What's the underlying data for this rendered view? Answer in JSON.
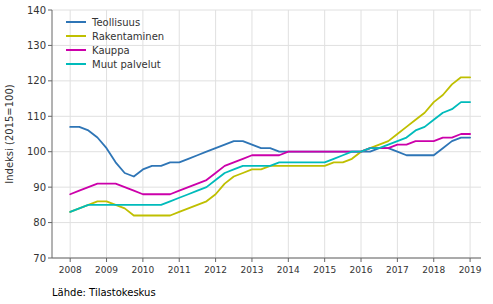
{
  "chart_data": {
    "type": "line",
    "ylabel": "Indeksi (2015=100)",
    "source": "Lähde: Tilastokeskus",
    "xlim": [
      2007.5,
      2019.3
    ],
    "ylim": [
      70,
      140
    ],
    "xticks": [
      2008,
      2009,
      2010,
      2011,
      2012,
      2013,
      2014,
      2015,
      2016,
      2017,
      2018,
      2019
    ],
    "yticks": [
      70,
      80,
      90,
      100,
      110,
      120,
      130,
      140
    ],
    "grid": true,
    "legend": "upper left",
    "x": [
      2008.0,
      2008.25,
      2008.5,
      2008.75,
      2009.0,
      2009.25,
      2009.5,
      2009.75,
      2010.0,
      2010.25,
      2010.5,
      2010.75,
      2011.0,
      2011.25,
      2011.5,
      2011.75,
      2012.0,
      2012.25,
      2012.5,
      2012.75,
      2013.0,
      2013.25,
      2013.5,
      2013.75,
      2014.0,
      2014.25,
      2014.5,
      2014.75,
      2015.0,
      2015.25,
      2015.5,
      2015.75,
      2016.0,
      2016.25,
      2016.5,
      2016.75,
      2017.0,
      2017.25,
      2017.5,
      2017.75,
      2018.0,
      2018.25,
      2018.5,
      2018.75,
      2019.0
    ],
    "series": [
      {
        "name": "Teollisuus",
        "color": "#2E75B6",
        "values": [
          107,
          107,
          106,
          104,
          101,
          97,
          94,
          93,
          95,
          96,
          96,
          97,
          97,
          98,
          99,
          100,
          101,
          102,
          103,
          103,
          102,
          101,
          101,
          100,
          100,
          100,
          100,
          100,
          100,
          100,
          100,
          100,
          100,
          100,
          101,
          101,
          100,
          99,
          99,
          99,
          99,
          101,
          103,
          104,
          104
        ]
      },
      {
        "name": "Rakentaminen",
        "color": "#BFBF00",
        "values": [
          83,
          84,
          85,
          86,
          86,
          85,
          84,
          82,
          82,
          82,
          82,
          82,
          83,
          84,
          85,
          86,
          88,
          91,
          93,
          94,
          95,
          95,
          96,
          96,
          96,
          96,
          96,
          96,
          96,
          97,
          97,
          98,
          100,
          101,
          102,
          103,
          105,
          107,
          109,
          111,
          114,
          116,
          119,
          121,
          121
        ]
      },
      {
        "name": "Kauppa",
        "color": "#CC00AA",
        "values": [
          88,
          89,
          90,
          91,
          91,
          91,
          90,
          89,
          88,
          88,
          88,
          88,
          89,
          90,
          91,
          92,
          94,
          96,
          97,
          98,
          99,
          99,
          99,
          99,
          100,
          100,
          100,
          100,
          100,
          100,
          100,
          100,
          100,
          101,
          101,
          101,
          102,
          102,
          103,
          103,
          103,
          104,
          104,
          105,
          105
        ]
      },
      {
        "name": "Muut palvelut",
        "color": "#00BBBB",
        "values": [
          83,
          84,
          85,
          85,
          85,
          85,
          85,
          85,
          85,
          85,
          85,
          86,
          87,
          88,
          89,
          90,
          92,
          94,
          95,
          96,
          96,
          96,
          96,
          97,
          97,
          97,
          97,
          97,
          97,
          98,
          99,
          100,
          100,
          101,
          101,
          102,
          103,
          104,
          106,
          107,
          109,
          111,
          112,
          114,
          114
        ]
      }
    ]
  }
}
